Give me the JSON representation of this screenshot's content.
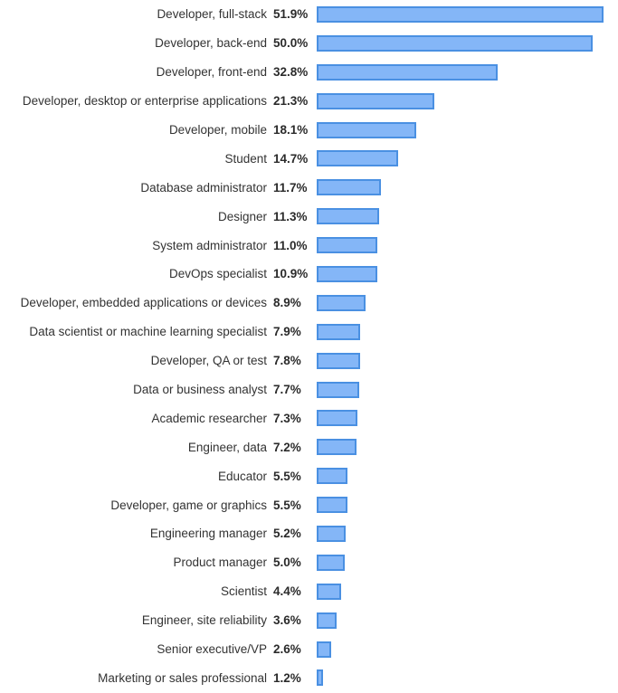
{
  "chart_data": {
    "type": "bar",
    "orientation": "horizontal",
    "title": "",
    "xlabel": "",
    "ylabel": "",
    "grid": false,
    "legend": "none",
    "xlim": [
      0,
      52
    ],
    "bar_fill": "#84B6F7",
    "bar_border": "#4A90E2",
    "categories": [
      "Developer, full-stack",
      "Developer, back-end",
      "Developer, front-end",
      "Developer, desktop or enterprise applications",
      "Developer, mobile",
      "Student",
      "Database administrator",
      "Designer",
      "System administrator",
      "DevOps specialist",
      "Developer, embedded applications or devices",
      "Data scientist or machine learning specialist",
      "Developer, QA or test",
      "Data or business analyst",
      "Academic researcher",
      "Engineer, data",
      "Educator",
      "Developer, game or graphics",
      "Engineering manager",
      "Product manager",
      "Scientist",
      "Engineer, site reliability",
      "Senior executive/VP",
      "Marketing or sales professional"
    ],
    "values": [
      51.9,
      50.0,
      32.8,
      21.3,
      18.1,
      14.7,
      11.7,
      11.3,
      11.0,
      10.9,
      8.9,
      7.9,
      7.8,
      7.7,
      7.3,
      7.2,
      5.5,
      5.5,
      5.2,
      5.0,
      4.4,
      3.6,
      2.6,
      1.2
    ],
    "value_labels": [
      "51.9%",
      "50.0%",
      "32.8%",
      "21.3%",
      "18.1%",
      "14.7%",
      "11.7%",
      "11.3%",
      "11.0%",
      "10.9%",
      "8.9%",
      "7.9%",
      "7.8%",
      "7.7%",
      "7.3%",
      "7.2%",
      "5.5%",
      "5.5%",
      "5.2%",
      "5.0%",
      "4.4%",
      "3.6%",
      "2.6%",
      "1.2%"
    ]
  }
}
